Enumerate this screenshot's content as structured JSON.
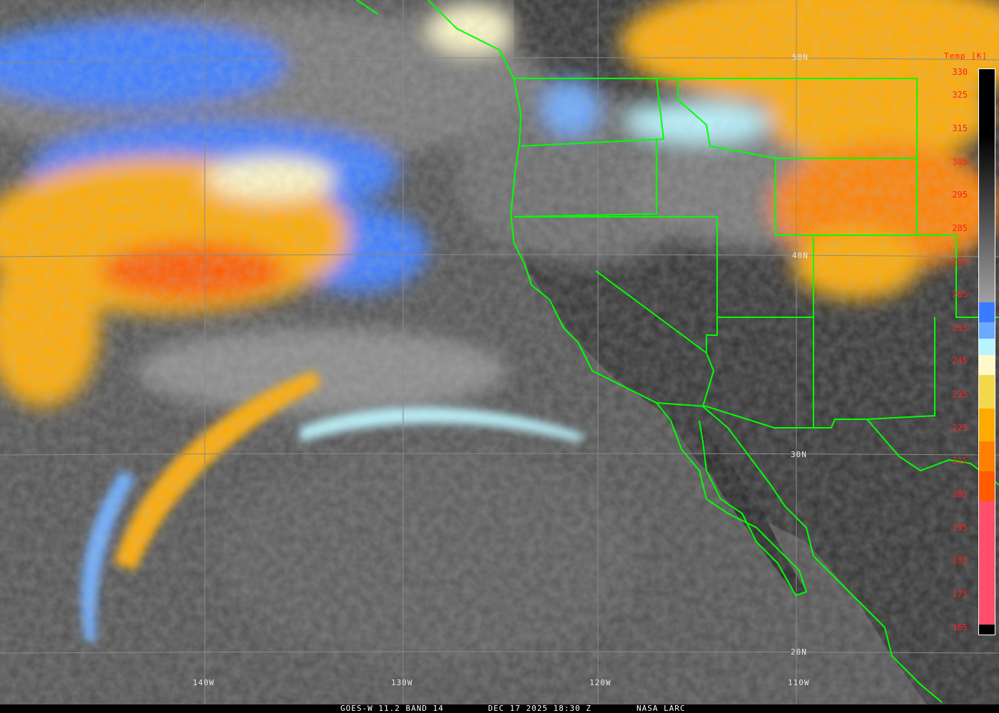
{
  "image": {
    "satellite": "GOES-W",
    "band_label": "GOES-W 11.2 BAND 14",
    "datetime": "DEC 17 2025 18:30 Z",
    "source": "NASA LARC"
  },
  "grid": {
    "latitudes": [
      "50N",
      "40N",
      "30N",
      "20N"
    ],
    "longitudes": [
      "140W",
      "130W",
      "120W",
      "110W"
    ],
    "grid_color": "#8a8a8a",
    "border_color": "#00ff00"
  },
  "colorbar": {
    "title": "Temp [K]",
    "ticks": [
      "330",
      "325",
      "315",
      "305",
      "295",
      "285",
      "275",
      "265",
      "255",
      "245",
      "235",
      "225",
      "215",
      "205",
      "195",
      "185",
      "175",
      "165"
    ],
    "range_k": [
      163,
      333
    ],
    "segments": [
      {
        "from": 333,
        "to": 313,
        "color": "#000000"
      },
      {
        "from": 313,
        "to": 263,
        "color": "gradient-black-to-gray"
      },
      {
        "from": 263,
        "to": 257,
        "color": "#3a7cff"
      },
      {
        "from": 257,
        "to": 252,
        "color": "#6aaaff"
      },
      {
        "from": 252,
        "to": 247,
        "color": "#b8f4ff"
      },
      {
        "from": 247,
        "to": 241,
        "color": "#fff8c8"
      },
      {
        "from": 241,
        "to": 231,
        "color": "#f2d84a"
      },
      {
        "from": 231,
        "to": 221,
        "color": "#ffaa00"
      },
      {
        "from": 221,
        "to": 212,
        "color": "#ff8000"
      },
      {
        "from": 212,
        "to": 203,
        "color": "#ff5a00"
      },
      {
        "from": 203,
        "to": 166,
        "color": "#ff4e6a"
      },
      {
        "from": 166,
        "to": 163,
        "color": "#000000"
      }
    ]
  }
}
